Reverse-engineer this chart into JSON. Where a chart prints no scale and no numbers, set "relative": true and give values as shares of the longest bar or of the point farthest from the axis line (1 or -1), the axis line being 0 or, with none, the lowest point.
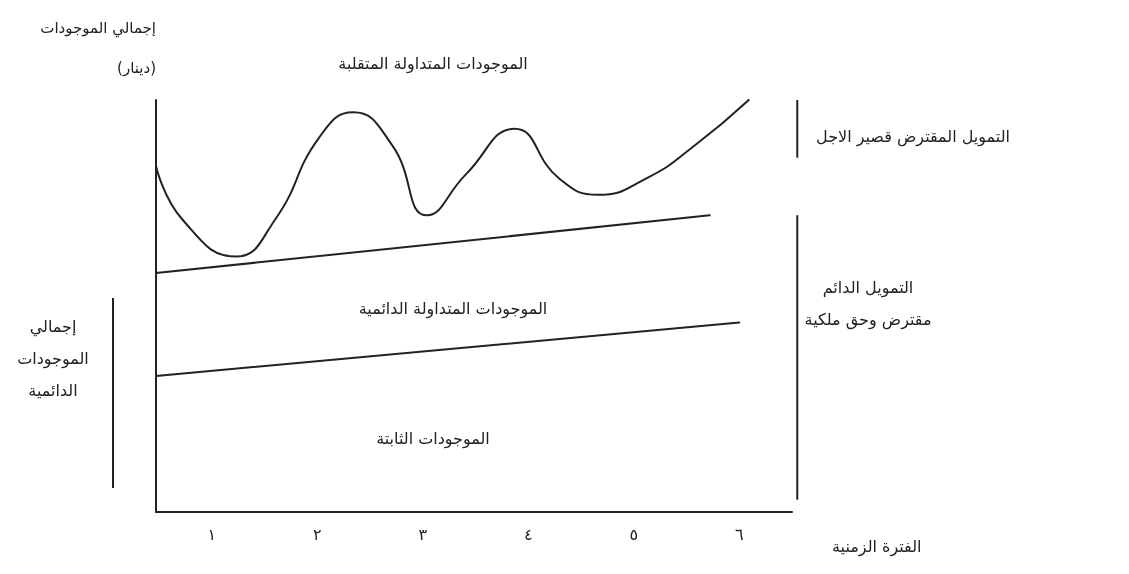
{
  "chart_data": {
    "type": "line",
    "relative": true,
    "ylabel": "إجمالي الموجودات\n(دينار)",
    "xlabel": "الفترة الزمنية",
    "xlim": [
      0.47,
      6.5
    ],
    "xticks": [
      {
        "value": 1,
        "label": "١"
      },
      {
        "value": 2,
        "label": "٢"
      },
      {
        "value": 3,
        "label": "٣"
      },
      {
        "value": 4,
        "label": "٤"
      },
      {
        "value": 5,
        "label": "٥"
      },
      {
        "value": 6,
        "label": "٦"
      }
    ],
    "series": [
      {
        "color": "#222222",
        "x": [
          0.47,
          0.72,
          1.23,
          1.6,
          2.02,
          2.34,
          2.71,
          3.04,
          3.41,
          3.87,
          4.29,
          4.66,
          5.12,
          5.58,
          6.09
        ],
        "values": [
          0.84,
          0.71,
          0.62,
          0.71,
          0.91,
          0.97,
          0.89,
          0.72,
          0.82,
          0.93,
          0.81,
          0.77,
          0.81,
          0.89,
          1.0
        ]
      },
      {
        "color": "#222222",
        "x": [
          0.47,
          5.72
        ],
        "values": [
          0.58,
          0.72
        ]
      },
      {
        "color": "#222222",
        "x": [
          0.47,
          6.0
        ],
        "values": [
          0.33,
          0.46
        ]
      }
    ],
    "marker": "none",
    "line_style": "solid",
    "grid": false,
    "annotations": [
      "الموجودات المتداولة المتقلبة",
      "الموجودات المتداولة الدائمية",
      "الموجودات الثابتة",
      "التمويل المقترض قصير الاجل",
      "التمويل الدائم\nمقترض وحق ملكية",
      "إجمالي\nالموجودات\nالدائمية"
    ]
  }
}
